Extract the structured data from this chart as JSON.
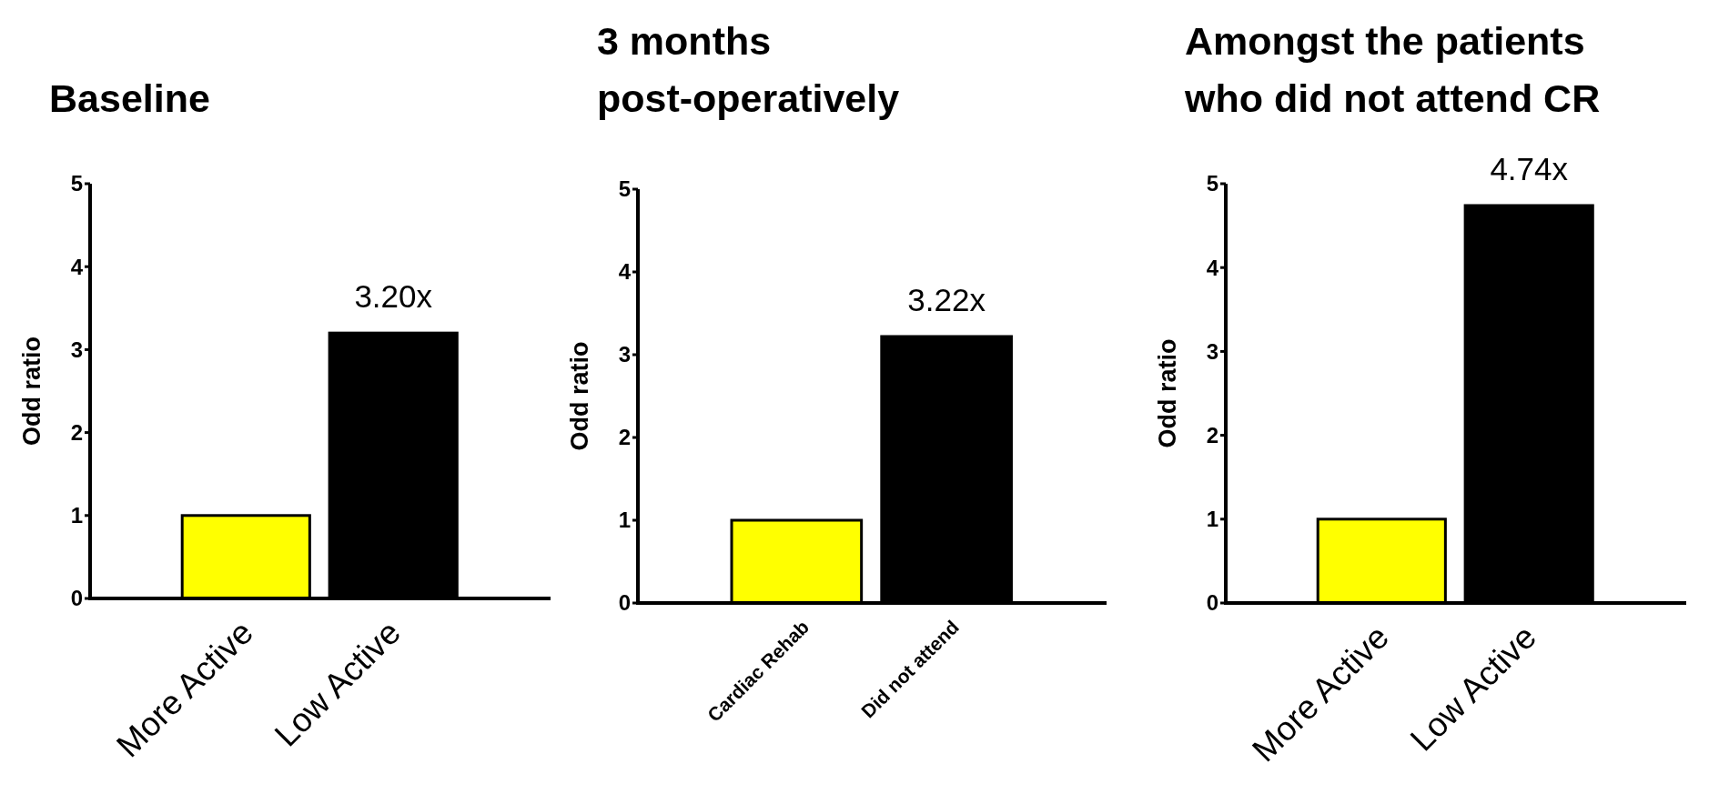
{
  "chart_data": [
    {
      "type": "bar",
      "title": "Baseline",
      "ylabel": "Odd ratio",
      "categories": [
        "More Active",
        "Low Active"
      ],
      "values": [
        1,
        3.2
      ],
      "colors": [
        "#ffff00",
        "#000000"
      ],
      "value_labels": [
        null,
        "3.20x"
      ],
      "ylim": [
        0,
        5
      ],
      "yticks": [
        0,
        1,
        2,
        3,
        4,
        5
      ]
    },
    {
      "type": "bar",
      "title": "3 months post-operatively",
      "ylabel": "Odd ratio",
      "categories": [
        "Cardiac Rehab",
        "Did not attend"
      ],
      "values": [
        1,
        3.22
      ],
      "colors": [
        "#ffff00",
        "#000000"
      ],
      "value_labels": [
        null,
        "3.22x"
      ],
      "ylim": [
        0,
        5
      ],
      "yticks": [
        0,
        1,
        2,
        3,
        4,
        5
      ]
    },
    {
      "type": "bar",
      "title": "Amongst the patients who did not attend CR",
      "ylabel": "Odd ratio",
      "categories": [
        "More Active",
        "Low Active"
      ],
      "values": [
        1,
        4.74
      ],
      "colors": [
        "#ffff00",
        "#000000"
      ],
      "value_labels": [
        null,
        "4.74x"
      ],
      "ylim": [
        0,
        5
      ],
      "yticks": [
        0,
        1,
        2,
        3,
        4,
        5
      ]
    }
  ]
}
